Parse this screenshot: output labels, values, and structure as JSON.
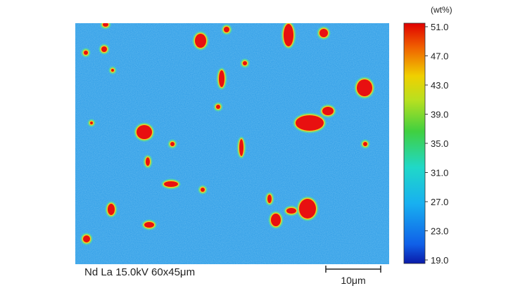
{
  "caption": "Nd La 15.0kV 60x45μm",
  "scale_bar": "10μm",
  "colorbar": {
    "unit": "(wt%)",
    "lim": [
      19,
      51
    ],
    "ticks": [
      {
        "value": 51,
        "label": "51.0"
      },
      {
        "value": 47,
        "label": "47.0"
      },
      {
        "value": 43,
        "label": "43.0"
      },
      {
        "value": 39,
        "label": "39.0"
      },
      {
        "value": 35,
        "label": "35.0"
      },
      {
        "value": 31,
        "label": "31.0"
      },
      {
        "value": 27,
        "label": "27.0"
      },
      {
        "value": 23,
        "label": "23.0"
      },
      {
        "value": 19,
        "label": "19.0"
      }
    ]
  }
}
